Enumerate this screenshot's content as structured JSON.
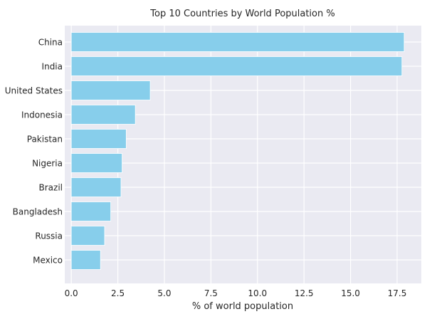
{
  "chart_data": {
    "type": "bar",
    "orientation": "horizontal",
    "title": "Top 10 Countries by World Population %",
    "xlabel": "% of world population",
    "ylabel": "",
    "categories": [
      "China",
      "India",
      "United States",
      "Indonesia",
      "Pakistan",
      "Nigeria",
      "Brazil",
      "Bangladesh",
      "Russia",
      "Mexico"
    ],
    "values": [
      17.88,
      17.76,
      4.24,
      3.44,
      2.95,
      2.73,
      2.67,
      2.12,
      1.79,
      1.57
    ],
    "xticks": [
      "0.0",
      "2.5",
      "5.0",
      "7.5",
      "10.0",
      "12.5",
      "15.0",
      "17.5"
    ],
    "xlim": [
      -0.35,
      18.8
    ],
    "grid": true,
    "bar_color": "#87ceeb",
    "background_color": "#eaeaf2"
  }
}
